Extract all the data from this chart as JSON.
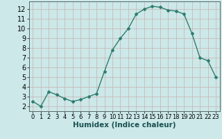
{
  "x": [
    0,
    1,
    2,
    3,
    4,
    5,
    6,
    7,
    8,
    9,
    10,
    11,
    12,
    13,
    14,
    15,
    16,
    17,
    18,
    19,
    20,
    21,
    22,
    23
  ],
  "y": [
    2.5,
    2.0,
    3.5,
    3.2,
    2.8,
    2.5,
    2.7,
    3.0,
    3.3,
    5.6,
    7.8,
    9.0,
    10.0,
    11.5,
    12.0,
    12.3,
    12.2,
    11.9,
    11.8,
    11.5,
    9.5,
    7.0,
    6.7,
    5.0
  ],
  "xlabel": "Humidex (Indice chaleur)",
  "xlim": [
    -0.5,
    23.5
  ],
  "ylim": [
    1.5,
    12.8
  ],
  "yticks": [
    2,
    3,
    4,
    5,
    6,
    7,
    8,
    9,
    10,
    11,
    12
  ],
  "xticks": [
    0,
    1,
    2,
    3,
    4,
    5,
    6,
    7,
    8,
    9,
    10,
    11,
    12,
    13,
    14,
    15,
    16,
    17,
    18,
    19,
    20,
    21,
    22,
    23
  ],
  "line_color": "#2e7d6e",
  "marker": "D",
  "marker_size": 2.0,
  "bg_color": "#cce8e8",
  "grid_major_color": "#c8b0b0",
  "grid_minor_color": "#d8c8c8",
  "label_fontsize": 7.5,
  "tick_fontsize": 7
}
